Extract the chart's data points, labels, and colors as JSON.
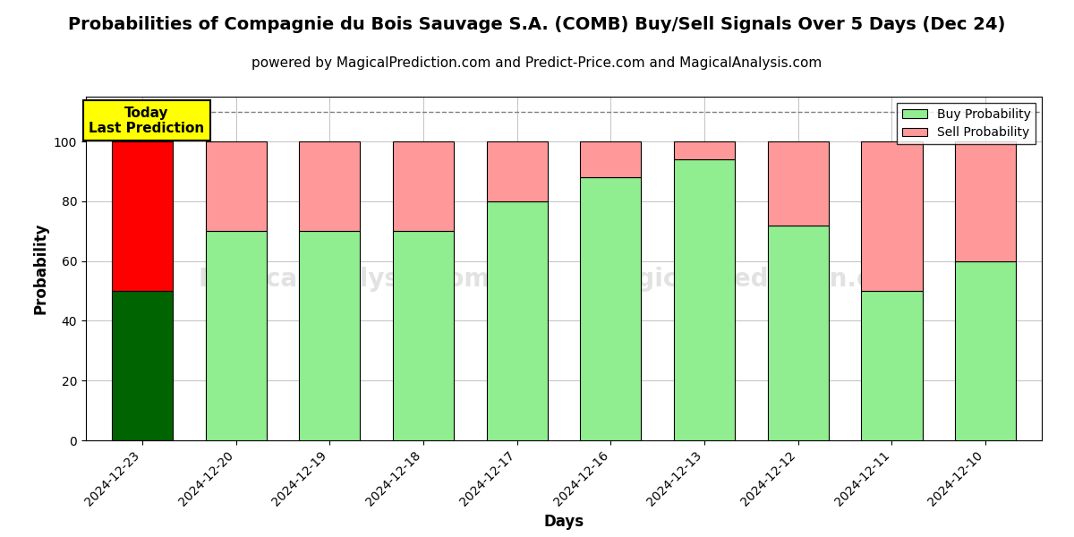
{
  "title": "Probabilities of Compagnie du Bois Sauvage S.A. (COMB) Buy/Sell Signals Over 5 Days (Dec 24)",
  "subtitle": "powered by MagicalPrediction.com and Predict-Price.com and MagicalAnalysis.com",
  "xlabel": "Days",
  "ylabel": "Probability",
  "watermark1": "MagicalAnalysis.com",
  "watermark2": "MagicalPrediction.com",
  "categories": [
    "2024-12-23",
    "2024-12-20",
    "2024-12-19",
    "2024-12-18",
    "2024-12-17",
    "2024-12-16",
    "2024-12-13",
    "2024-12-12",
    "2024-12-11",
    "2024-12-10"
  ],
  "buy_values": [
    50,
    70,
    70,
    70,
    80,
    88,
    94,
    72,
    50,
    60
  ],
  "sell_values": [
    50,
    30,
    30,
    30,
    20,
    12,
    6,
    28,
    50,
    40
  ],
  "buy_colors": [
    "#006400",
    "#90EE90",
    "#90EE90",
    "#90EE90",
    "#90EE90",
    "#90EE90",
    "#90EE90",
    "#90EE90",
    "#90EE90",
    "#90EE90"
  ],
  "sell_colors": [
    "#FF0000",
    "#FF9999",
    "#FF9999",
    "#FF9999",
    "#FF9999",
    "#FF9999",
    "#FF9999",
    "#FF9999",
    "#FF9999",
    "#FF9999"
  ],
  "today_label": "Today\nLast Prediction",
  "today_box_color": "#FFFF00",
  "legend_buy_color": "#90EE90",
  "legend_sell_color": "#FF9999",
  "dashed_line_y": 110,
  "ylim": [
    0,
    115
  ],
  "yticks": [
    0,
    20,
    40,
    60,
    80,
    100
  ],
  "background_color": "#ffffff",
  "grid_color": "#aaaaaa",
  "title_fontsize": 14,
  "subtitle_fontsize": 11,
  "axis_label_fontsize": 12,
  "tick_fontsize": 10
}
